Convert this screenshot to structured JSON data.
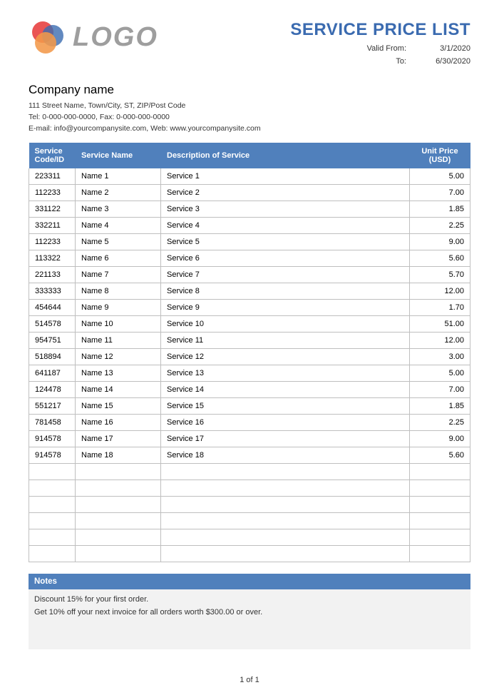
{
  "header": {
    "logo_text": "LOGO",
    "logo_colors": {
      "red": "#e84545",
      "blue": "#3b6bb0",
      "orange": "#f2994a"
    },
    "doc_title": "SERVICE PRICE LIST",
    "valid_from_label": "Valid From:",
    "valid_from_value": "3/1/2020",
    "valid_to_label": "To:",
    "valid_to_value": "6/30/2020"
  },
  "company": {
    "name": "Company name",
    "address": "111 Street Name, Town/City, ST, ZIP/Post Code",
    "phone": "Tel: 0-000-000-0000, Fax: 0-000-000-0000",
    "contact": "E-mail: info@yourcompanysite.com, Web: www.yourcompanysite.com"
  },
  "table": {
    "columns": {
      "code": "Service Code/ID",
      "name": "Service Name",
      "desc": "Description of Service",
      "price": "Unit Price (USD)"
    },
    "header_bg": "#5080bc",
    "header_fg": "#ffffff",
    "border_color": "#bfbfbf",
    "rows": [
      {
        "code": "223311",
        "name": "Name 1",
        "desc": "Service 1",
        "price": "5.00"
      },
      {
        "code": "112233",
        "name": "Name 2",
        "desc": "Service 2",
        "price": "7.00"
      },
      {
        "code": "331122",
        "name": "Name 3",
        "desc": "Service 3",
        "price": "1.85"
      },
      {
        "code": "332211",
        "name": "Name 4",
        "desc": "Service 4",
        "price": "2.25"
      },
      {
        "code": "112233",
        "name": "Name 5",
        "desc": "Service 5",
        "price": "9.00"
      },
      {
        "code": "113322",
        "name": "Name 6",
        "desc": "Service 6",
        "price": "5.60"
      },
      {
        "code": "221133",
        "name": "Name 7",
        "desc": "Service 7",
        "price": "5.70"
      },
      {
        "code": "333333",
        "name": "Name 8",
        "desc": "Service 8",
        "price": "12.00"
      },
      {
        "code": "454644",
        "name": "Name 9",
        "desc": "Service 9",
        "price": "1.70"
      },
      {
        "code": "514578",
        "name": "Name 10",
        "desc": "Service 10",
        "price": "51.00"
      },
      {
        "code": "954751",
        "name": "Name 11",
        "desc": "Service 11",
        "price": "12.00"
      },
      {
        "code": "518894",
        "name": "Name 12",
        "desc": "Service 12",
        "price": "3.00"
      },
      {
        "code": "641187",
        "name": "Name 13",
        "desc": "Service 13",
        "price": "5.00"
      },
      {
        "code": "124478",
        "name": "Name 14",
        "desc": "Service 14",
        "price": "7.00"
      },
      {
        "code": "551217",
        "name": "Name 15",
        "desc": "Service 15",
        "price": "1.85"
      },
      {
        "code": "781458",
        "name": "Name 16",
        "desc": "Service 16",
        "price": "2.25"
      },
      {
        "code": "914578",
        "name": "Name 17",
        "desc": "Service 17",
        "price": "9.00"
      },
      {
        "code": "914578",
        "name": "Name 18",
        "desc": "Service 18",
        "price": "5.60"
      }
    ],
    "empty_rows": 6
  },
  "notes": {
    "header": "Notes",
    "lines": [
      "Discount 15% for your first order.",
      "Get 10% off your next invoice for all orders worth $300.00 or over."
    ],
    "bg": "#f2f2f2"
  },
  "pager": "1 of 1"
}
